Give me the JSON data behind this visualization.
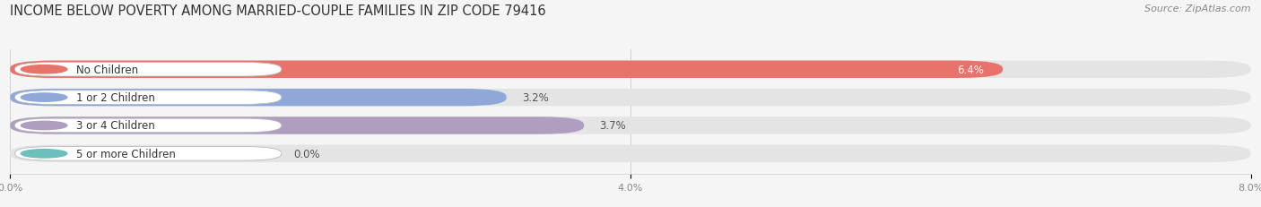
{
  "title": "INCOME BELOW POVERTY AMONG MARRIED-COUPLE FAMILIES IN ZIP CODE 79416",
  "source": "Source: ZipAtlas.com",
  "categories": [
    "No Children",
    "1 or 2 Children",
    "3 or 4 Children",
    "5 or more Children"
  ],
  "values": [
    6.4,
    3.2,
    3.7,
    0.0
  ],
  "bar_colors": [
    "#E8736A",
    "#8FA8D8",
    "#B09EC0",
    "#6CBFBA"
  ],
  "value_colors": [
    "white",
    "#666666",
    "#666666",
    "#666666"
  ],
  "background_color": "#f5f5f5",
  "bar_bg_color": "#e4e4e4",
  "xlim": [
    0,
    8.0
  ],
  "xtick_labels": [
    "0.0%",
    "4.0%",
    "8.0%"
  ],
  "xtick_vals": [
    0.0,
    4.0,
    8.0
  ],
  "title_fontsize": 10.5,
  "source_fontsize": 8,
  "label_fontsize": 8.5,
  "value_fontsize": 8.5,
  "bar_height": 0.62,
  "fig_width": 14.06,
  "fig_height": 2.32
}
